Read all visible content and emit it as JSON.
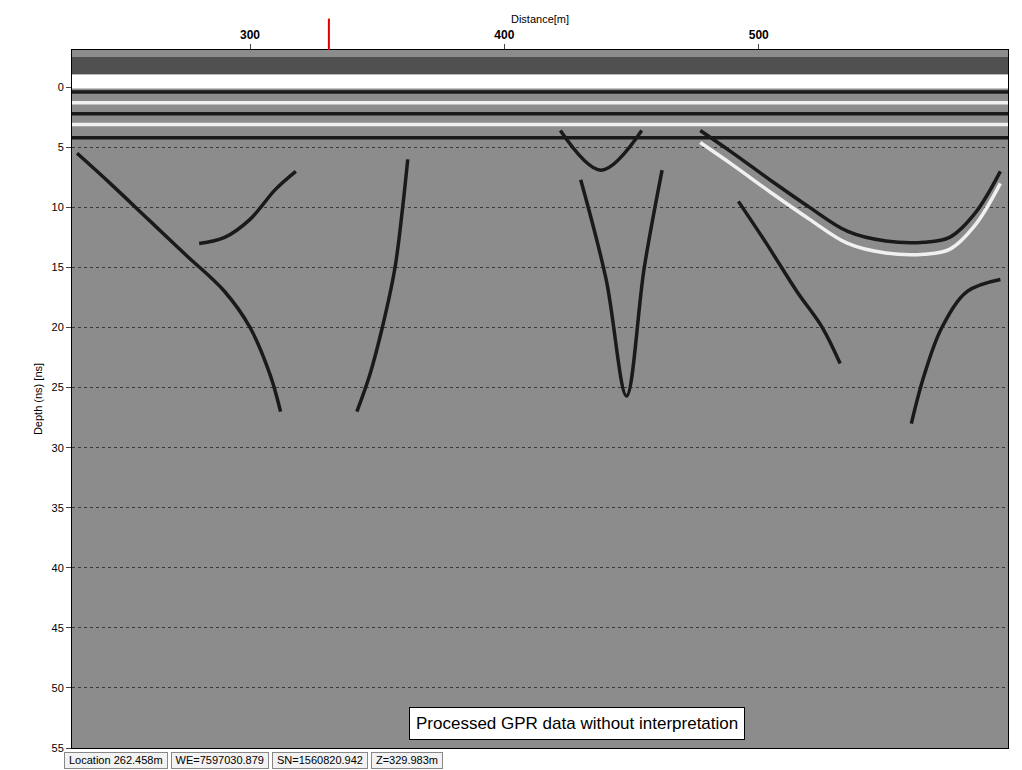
{
  "chart_data": {
    "type": "line",
    "x_label": "Distance[m]",
    "y_label": "Depth (ns) [ns]",
    "annotation": "Processed GPR data without interpretation",
    "xlim": [
      230,
      598
    ],
    "xticks": [
      300,
      400,
      500
    ],
    "ylim": [
      -3.1,
      55
    ],
    "yticks": [
      0,
      5,
      10,
      15,
      20,
      25,
      30,
      35,
      40,
      45,
      50,
      55
    ],
    "grid": true,
    "series": [
      {
        "color": "#1a1a1a",
        "x": [
          230,
          598
        ],
        "values": [
          0.4,
          0.4
        ]
      },
      {
        "color": "#f0f0f0",
        "x": [
          230,
          598
        ],
        "values": [
          1.3,
          1.3
        ]
      },
      {
        "color": "#1a1a1a",
        "x": [
          230,
          598
        ],
        "values": [
          2.2,
          2.2
        ]
      },
      {
        "color": "#f0f0f0",
        "x": [
          230,
          598
        ],
        "values": [
          3.1,
          3.1
        ]
      },
      {
        "color": "#1a1a1a",
        "x": [
          230,
          598
        ],
        "values": [
          4.2,
          4.2
        ]
      },
      {
        "color": "#1a1a1a",
        "x": [
          232,
          245,
          260,
          275,
          290,
          300,
          308,
          312
        ],
        "values": [
          5.5,
          8,
          11,
          14,
          17,
          20,
          24,
          27
        ]
      },
      {
        "color": "#1a1a1a",
        "x": [
          280,
          290,
          300,
          310,
          318
        ],
        "values": [
          13,
          12.5,
          11,
          8.5,
          7
        ]
      },
      {
        "color": "#1a1a1a",
        "x": [
          362,
          360,
          357,
          352,
          347,
          342
        ],
        "values": [
          6,
          10,
          15,
          20,
          24,
          27
        ]
      },
      {
        "color": "#1a1a1a",
        "x": [
          422,
          438,
          454
        ],
        "values": [
          3.6,
          6.9,
          3.6
        ]
      },
      {
        "color": "#1a1a1a",
        "x": [
          430,
          440,
          448,
          455,
          462
        ],
        "values": [
          7.7,
          16,
          25.7,
          15,
          6.9
        ]
      },
      {
        "color": "#1a1a1a",
        "x": [
          477,
          490,
          505,
          520,
          535,
          550,
          565,
          575,
          585,
          595
        ],
        "values": [
          3.6,
          5.5,
          7.8,
          10,
          12,
          12.8,
          12.9,
          12.5,
          10.5,
          7
        ]
      },
      {
        "color": "#f0f0f0",
        "x": [
          477,
          490,
          505,
          520,
          535,
          550,
          565,
          575,
          585,
          595
        ],
        "values": [
          4.6,
          6.5,
          8.8,
          11,
          13,
          13.8,
          13.9,
          13.5,
          11.5,
          8
        ]
      },
      {
        "color": "#1a1a1a",
        "x": [
          492,
          503,
          515,
          525,
          532
        ],
        "values": [
          9.5,
          13,
          17,
          20,
          23
        ]
      },
      {
        "color": "#1a1a1a",
        "x": [
          560,
          565,
          572,
          582,
          595
        ],
        "values": [
          28,
          24,
          20,
          17,
          16
        ]
      }
    ]
  },
  "cursor": {
    "distance": 331
  },
  "status_bar": {
    "location_label": "Location",
    "location": "262.458m",
    "we": "WE=7597030.879",
    "sn": "SN=1560820.942",
    "z": "Z=329.983m"
  }
}
